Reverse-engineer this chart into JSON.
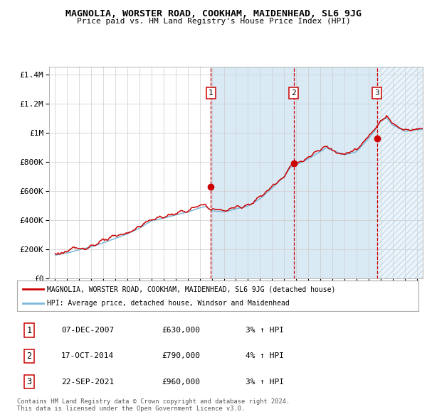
{
  "title": "MAGNOLIA, WORSTER ROAD, COOKHAM, MAIDENHEAD, SL6 9JG",
  "subtitle": "Price paid vs. HM Land Registry's House Price Index (HPI)",
  "legend_line1": "MAGNOLIA, WORSTER ROAD, COOKHAM, MAIDENHEAD, SL6 9JG (detached house)",
  "legend_line2": "HPI: Average price, detached house, Windsor and Maidenhead",
  "footer1": "Contains HM Land Registry data © Crown copyright and database right 2024.",
  "footer2": "This data is licensed under the Open Government Licence v3.0.",
  "transactions": [
    {
      "num": 1,
      "date": "07-DEC-2007",
      "price": 630000,
      "pct": "3%",
      "dir": "↑",
      "year": 2007.93
    },
    {
      "num": 2,
      "date": "17-OCT-2014",
      "price": 790000,
      "pct": "4%",
      "dir": "↑",
      "year": 2014.79
    },
    {
      "num": 3,
      "date": "22-SEP-2021",
      "price": 960000,
      "pct": "3%",
      "dir": "↑",
      "year": 2021.72
    }
  ],
  "hpi_color": "#7ab8d9",
  "price_color": "#cc0000",
  "dot_color": "#cc0000",
  "vline_color": "#cc0000",
  "shade_color": "#daeaf5",
  "hatch_color": "#c5ddef",
  "ylim": [
    0,
    1450000
  ],
  "xlim_start": 1994.5,
  "xlim_end": 2025.5,
  "background_color": "#ffffff",
  "grid_color": "#cccccc",
  "waypoints_t": [
    1995,
    1996,
    1997,
    1998,
    1999,
    2000,
    2001,
    2002,
    2003,
    2004,
    2005,
    2006,
    2007,
    2007.5,
    2008,
    2008.5,
    2009,
    2009.5,
    2010,
    2011,
    2012,
    2013,
    2014,
    2014.5,
    2015,
    2016,
    2017,
    2017.5,
    2018,
    2019,
    2020,
    2021,
    2021.5,
    2022,
    2022.5,
    2023,
    2024,
    2025
  ],
  "waypoints_v": [
    160000,
    175000,
    200000,
    220000,
    250000,
    280000,
    310000,
    350000,
    400000,
    420000,
    440000,
    460000,
    490000,
    500000,
    470000,
    465000,
    460000,
    470000,
    480000,
    500000,
    550000,
    620000,
    700000,
    760000,
    780000,
    820000,
    870000,
    900000,
    880000,
    850000,
    870000,
    960000,
    1010000,
    1080000,
    1100000,
    1050000,
    1010000,
    1020000
  ]
}
